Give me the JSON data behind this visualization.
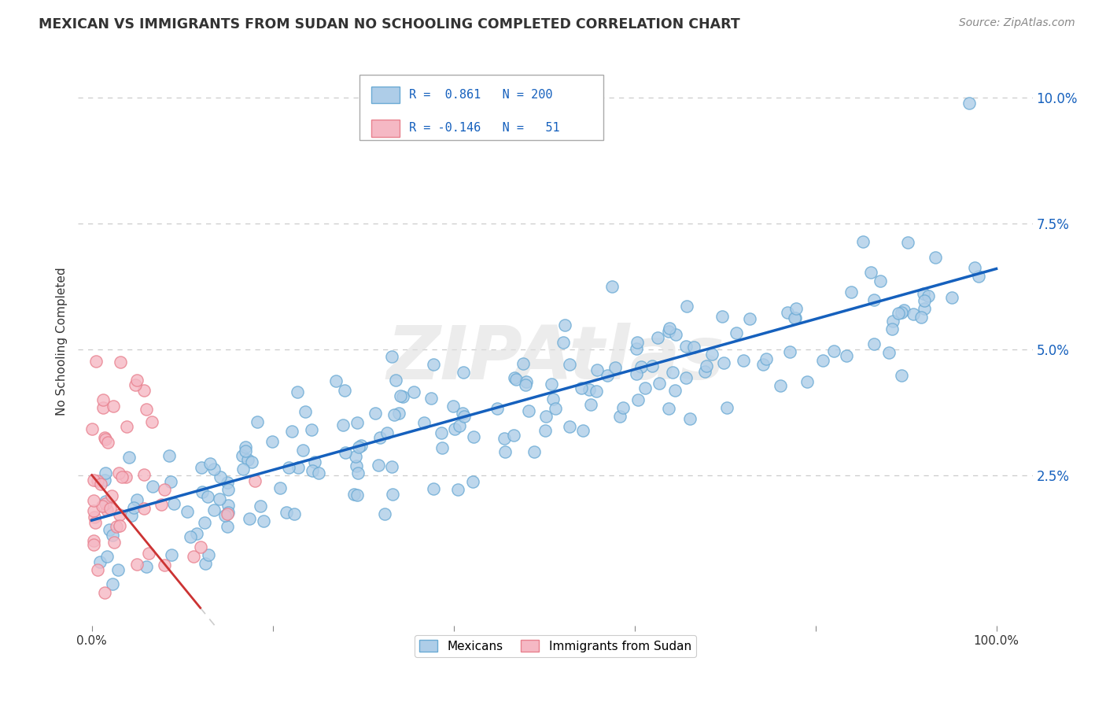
{
  "title": "MEXICAN VS IMMIGRANTS FROM SUDAN NO SCHOOLING COMPLETED CORRELATION CHART",
  "source": "Source: ZipAtlas.com",
  "xlabel_ticks_show": [
    "0.0%",
    "100.0%"
  ],
  "xlabel_vals_show": [
    0.0,
    1.0
  ],
  "ylabel": "No Schooling Completed",
  "ylabel_ticks": [
    "2.5%",
    "5.0%",
    "7.5%",
    "10.0%"
  ],
  "ylabel_vals": [
    0.025,
    0.05,
    0.075,
    0.1
  ],
  "legend_label1": "Mexicans",
  "legend_label2": "Immigrants from Sudan",
  "R1": "0.861",
  "N1": "200",
  "R2": "-0.146",
  "N2": "51",
  "blue_face": "#aecde8",
  "blue_edge": "#6aaad4",
  "pink_face": "#f5b8c4",
  "pink_edge": "#e8808e",
  "line_blue": "#1560bd",
  "line_pink": "#cc3333",
  "line_dashed_color": "#cccccc",
  "background": "#ffffff",
  "grid_color": "#cccccc",
  "watermark": "ZIPAtlas",
  "xlim": [
    -0.015,
    1.04
  ],
  "ylim": [
    -0.005,
    0.108
  ],
  "title_color": "#333333",
  "source_color": "#888888",
  "tick_color_right": "#1560bd"
}
